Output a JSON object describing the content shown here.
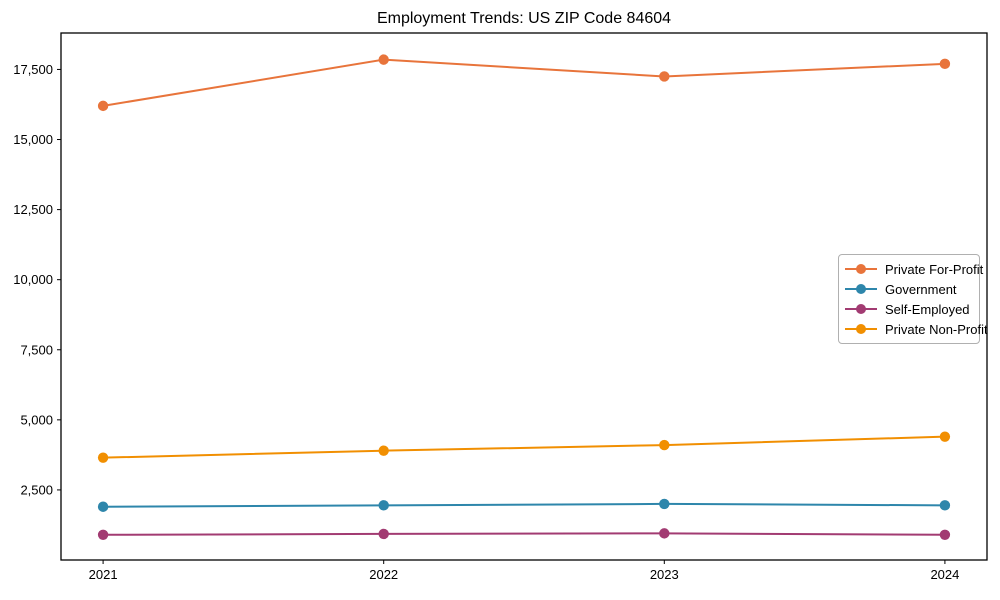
{
  "chart_data": {
    "type": "line",
    "title": "Employment Trends: US ZIP Code 84604",
    "x": [
      2021,
      2022,
      2023,
      2024
    ],
    "xtick_labels": [
      "2021",
      "2022",
      "2023",
      "2024"
    ],
    "yticks": [
      2500,
      5000,
      7500,
      10000,
      12500,
      15000,
      17500
    ],
    "ytick_labels": [
      "2,500",
      "5,000",
      "7,500",
      "10,000",
      "12,500",
      "15,000",
      "17,500"
    ],
    "xlim": [
      2020.85,
      2024.15
    ],
    "ylim": [
      0,
      18800
    ],
    "grid": false,
    "xlabel": "",
    "ylabel": "",
    "legend_position": "center right",
    "series": [
      {
        "name": "Private For-Profit",
        "color": "#E8743B",
        "values": [
          16200,
          17850,
          17250,
          17700
        ]
      },
      {
        "name": "Government",
        "color": "#2E86AB",
        "values": [
          1900,
          1950,
          2000,
          1950
        ]
      },
      {
        "name": "Self-Employed",
        "color": "#A23B72",
        "values": [
          900,
          930,
          950,
          900
        ]
      },
      {
        "name": "Private Non-Profit",
        "color": "#F18F01",
        "values": [
          3650,
          3900,
          4100,
          4400
        ]
      }
    ]
  }
}
